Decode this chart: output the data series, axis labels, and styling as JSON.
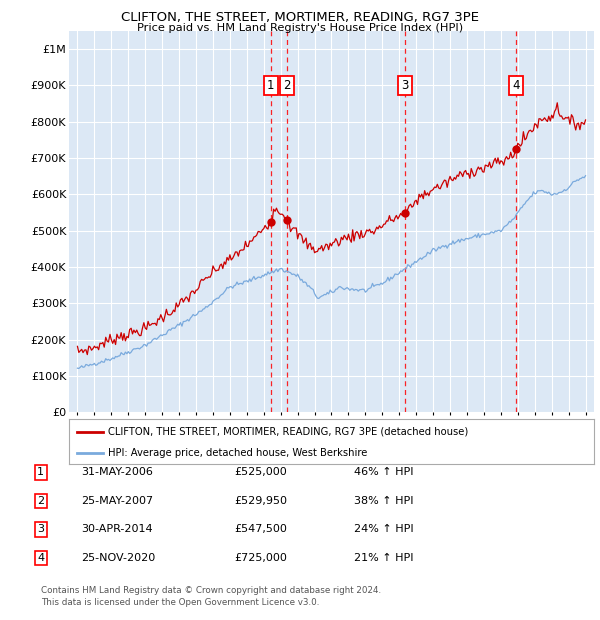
{
  "title": "CLIFTON, THE STREET, MORTIMER, READING, RG7 3PE",
  "subtitle": "Price paid vs. HM Land Registry's House Price Index (HPI)",
  "legend_line1": "CLIFTON, THE STREET, MORTIMER, READING, RG7 3PE (detached house)",
  "legend_line2": "HPI: Average price, detached house, West Berkshire",
  "footer_line1": "Contains HM Land Registry data © Crown copyright and database right 2024.",
  "footer_line2": "This data is licensed under the Open Government Licence v3.0.",
  "sale_color": "#cc0000",
  "hpi_color": "#7aaadd",
  "background_color": "#dce8f5",
  "grid_color": "#ffffff",
  "table_rows": [
    {
      "num": "1",
      "date": "31-MAY-2006",
      "price": "£525,000",
      "hpi": "46% ↑ HPI"
    },
    {
      "num": "2",
      "date": "25-MAY-2007",
      "price": "£529,950",
      "hpi": "38% ↑ HPI"
    },
    {
      "num": "3",
      "date": "30-APR-2014",
      "price": "£547,500",
      "hpi": "24% ↑ HPI"
    },
    {
      "num": "4",
      "date": "25-NOV-2020",
      "price": "£725,000",
      "hpi": "21% ↑ HPI"
    }
  ],
  "vline_dates": [
    2006.41,
    2007.39,
    2014.33,
    2020.9
  ],
  "sale_labels": [
    {
      "label": "1",
      "date_x": 2006.41,
      "price": 525000
    },
    {
      "label": "2",
      "date_x": 2007.39,
      "price": 529950
    },
    {
      "label": "3",
      "date_x": 2014.33,
      "price": 547500
    },
    {
      "label": "4",
      "date_x": 2020.9,
      "price": 725000
    }
  ],
  "ylim": [
    0,
    1050000
  ],
  "yticks": [
    0,
    100000,
    200000,
    300000,
    400000,
    500000,
    600000,
    700000,
    800000,
    900000,
    1000000
  ],
  "ytick_labels": [
    "£0",
    "£100K",
    "£200K",
    "£300K",
    "£400K",
    "£500K",
    "£600K",
    "£700K",
    "£800K",
    "£900K",
    "£1M"
  ],
  "xlim_start": 1994.5,
  "xlim_end": 2025.5,
  "xticks": [
    1995,
    1996,
    1997,
    1998,
    1999,
    2000,
    2001,
    2002,
    2003,
    2004,
    2005,
    2006,
    2007,
    2008,
    2009,
    2010,
    2011,
    2012,
    2013,
    2014,
    2015,
    2016,
    2017,
    2018,
    2019,
    2020,
    2021,
    2022,
    2023,
    2024,
    2025
  ]
}
